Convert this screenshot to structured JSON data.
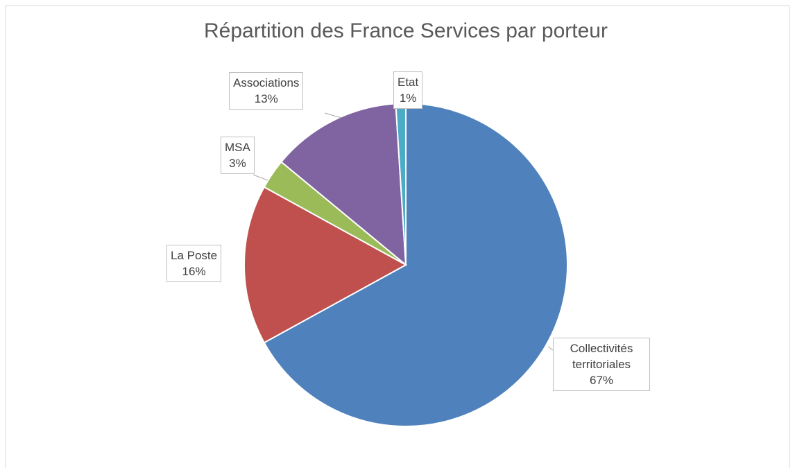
{
  "chart_data": {
    "type": "pie",
    "title": "Répartition des France Services par porteur",
    "categories": [
      "Collectivités territoriales",
      "La Poste",
      "MSA",
      "Associations",
      "Etat"
    ],
    "values": [
      67,
      16,
      3,
      13,
      1
    ],
    "value_labels": [
      "67%",
      "16%",
      "3%",
      "13%",
      "1%"
    ],
    "colors": [
      "#4f81bd",
      "#c0504d",
      "#9bbb59",
      "#8064a2",
      "#4bacc6"
    ]
  }
}
